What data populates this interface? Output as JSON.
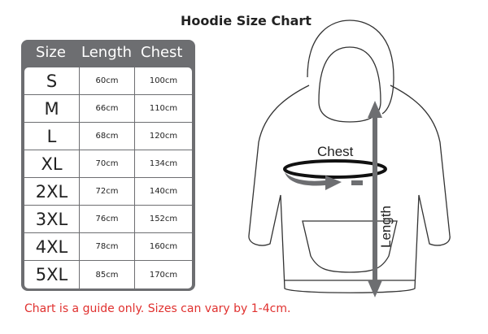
{
  "title": "Hoodie Size Chart",
  "table": {
    "headers": [
      "Size",
      "Length",
      "Chest"
    ],
    "rows": [
      [
        "S",
        "60cm",
        "100cm"
      ],
      [
        "M",
        "66cm",
        "110cm"
      ],
      [
        "L",
        "68cm",
        "120cm"
      ],
      [
        "XL",
        "70cm",
        "134cm"
      ],
      [
        "2XL",
        "72cm",
        "140cm"
      ],
      [
        "3XL",
        "76cm",
        "152cm"
      ],
      [
        "4XL",
        "78cm",
        "160cm"
      ],
      [
        "5XL",
        "85cm",
        "170cm"
      ]
    ]
  },
  "diagram": {
    "chest_label": "Chest",
    "length_label": "Length",
    "arrow_color": "#6d6e71"
  },
  "note": "Chart is a guide only. Sizes can vary by 1-4cm.",
  "colors": {
    "table_frame": "#6d6e71",
    "note": "#e0312f"
  }
}
